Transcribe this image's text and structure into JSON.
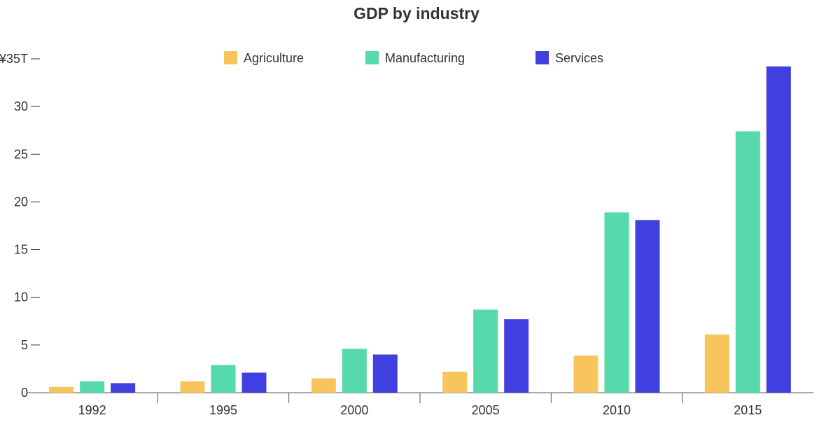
{
  "chart_data": {
    "type": "bar",
    "title": "GDP by industry",
    "xlabel": "",
    "ylabel": "",
    "categories": [
      "1992",
      "1995",
      "2000",
      "2005",
      "2010",
      "2015"
    ],
    "series": [
      {
        "name": "Agriculture",
        "color": "#f7c55b",
        "values": [
          0.6,
          1.2,
          1.5,
          2.2,
          3.9,
          6.1
        ]
      },
      {
        "name": "Manufacturing",
        "color": "#56d9ab",
        "values": [
          1.2,
          2.9,
          4.6,
          8.7,
          18.9,
          27.4
        ]
      },
      {
        "name": "Services",
        "color": "#4040e0",
        "values": [
          1.0,
          2.1,
          4.0,
          7.7,
          18.1,
          34.2
        ]
      }
    ],
    "ylim": [
      0,
      35
    ],
    "yticks": [
      0,
      5,
      10,
      15,
      20,
      25,
      30,
      35
    ],
    "ytick_labels": [
      "0",
      "5",
      "10",
      "15",
      "20",
      "25",
      "30",
      "¥35T"
    ],
    "legend": "top-center",
    "grid": false
  }
}
